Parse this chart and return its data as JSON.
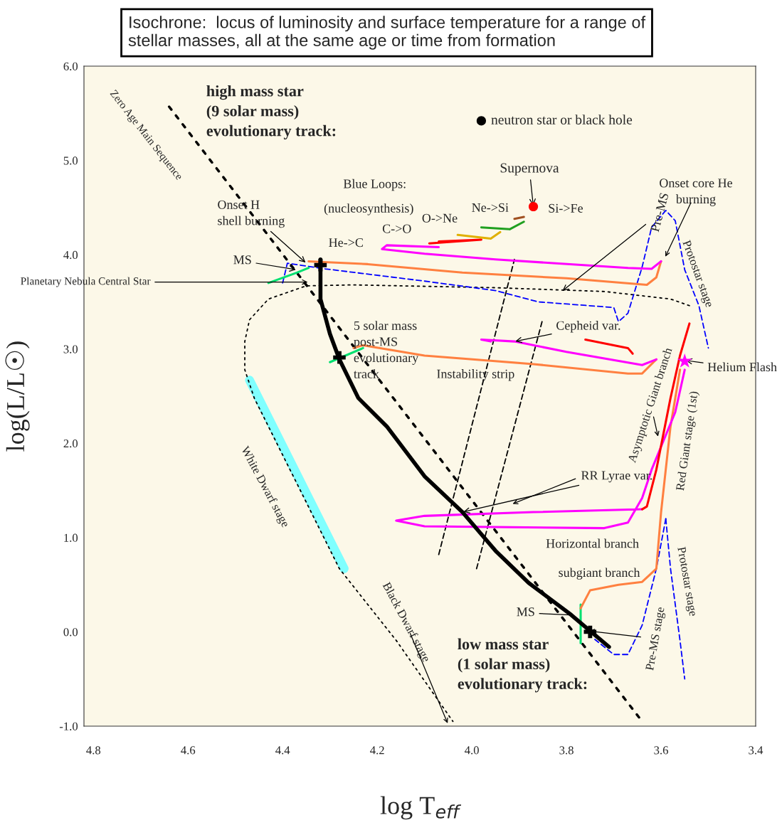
{
  "chart_data": {
    "type": "line",
    "title": "Isochrone:  locus of luminosity and surface temperature for a range of\nstellar masses, all at the same age or time from formation",
    "xlabel": "log T$_{eff}$",
    "ylabel": "log(L/L☉)",
    "xlim": [
      4.82,
      3.4
    ],
    "ylim": [
      -1.0,
      6.0
    ],
    "xticks": [
      {
        "value": 4.8,
        "label": "4.8"
      },
      {
        "value": 4.6,
        "label": "4.6"
      },
      {
        "value": 4.4,
        "label": "4.4"
      },
      {
        "value": 4.2,
        "label": "4.2"
      },
      {
        "value": 4.0,
        "label": "4.0"
      },
      {
        "value": 3.8,
        "label": "3.8"
      },
      {
        "value": 3.6,
        "label": "3.6"
      },
      {
        "value": 3.4,
        "label": "3.4"
      }
    ],
    "yticks": [
      {
        "value": -1.0,
        "label": "-1.0"
      },
      {
        "value": 0.0,
        "label": "0.0"
      },
      {
        "value": 1.0,
        "label": "1.0"
      },
      {
        "value": 2.0,
        "label": "2.0"
      },
      {
        "value": 3.0,
        "label": "3.0"
      },
      {
        "value": 4.0,
        "label": "4.0"
      },
      {
        "value": 5.0,
        "label": "5.0"
      },
      {
        "value": 6.0,
        "label": "6.0"
      }
    ],
    "grid": false,
    "series": [
      {
        "type": "line",
        "color": "#000000",
        "line_style": "dotted",
        "x": [
          4.64,
          3.64
        ],
        "values": [
          5.57,
          -0.95
        ]
      },
      {
        "type": "line",
        "color": "#80ffff",
        "line_style": "solid",
        "x": [
          4.47,
          4.27
        ],
        "values": [
          2.67,
          0.67
        ]
      },
      {
        "type": "line",
        "color": "#000000",
        "line_style": "dotted",
        "x": [
          3.54,
          3.58,
          3.72,
          3.95,
          4.25,
          4.35,
          4.43,
          4.47,
          4.48,
          4.48,
          4.46,
          4.28,
          4.16,
          4.04
        ],
        "values": [
          3.46,
          3.53,
          3.61,
          3.65,
          3.68,
          3.67,
          3.53,
          3.31,
          3.08,
          2.78,
          2.48,
          0.67,
          -0.09,
          -0.95
        ]
      },
      {
        "type": "line",
        "color": "#000000",
        "line_style": "dashed",
        "x": [
          4.07,
          3.91
        ],
        "values": [
          0.82,
          3.95
        ]
      },
      {
        "type": "line",
        "color": "#000000",
        "line_style": "dashed",
        "x": [
          3.99,
          3.85
        ],
        "values": [
          0.67,
          3.32
        ]
      },
      {
        "type": "line",
        "color": "#0000ff",
        "line_style": "dashed",
        "x": [
          4.4,
          4.39,
          4.31,
          4.1,
          3.95,
          3.86,
          3.7,
          3.69,
          3.67,
          3.64,
          3.62,
          3.59,
          3.57,
          3.55,
          3.52,
          3.5
        ],
        "values": [
          3.7,
          3.91,
          3.85,
          3.72,
          3.62,
          3.5,
          3.44,
          3.29,
          3.38,
          3.87,
          4.29,
          4.47,
          4.36,
          3.84,
          3.46,
          3.01
        ]
      },
      {
        "type": "line",
        "color": "#0000ff",
        "line_style": "dashed",
        "x": [
          3.59,
          3.61,
          3.64,
          3.67,
          3.7,
          3.74
        ],
        "values": [
          1.2,
          0.67,
          0.07,
          -0.24,
          -0.24,
          -0.08
        ]
      },
      {
        "type": "line",
        "color": "#0000ff",
        "line_style": "dashed",
        "x": [
          3.59,
          3.58,
          3.56,
          3.55
        ],
        "values": [
          1.2,
          0.67,
          -0.09,
          -0.5
        ]
      },
      {
        "type": "line",
        "color": "#ff8040",
        "line_style": "solid",
        "x": [
          4.345,
          4.22,
          4.02,
          3.8,
          3.63,
          3.61,
          3.6
        ],
        "values": [
          3.93,
          3.9,
          3.81,
          3.75,
          3.68,
          3.76,
          3.93
        ]
      },
      {
        "type": "line",
        "color": "#ff00ff",
        "line_style": "solid",
        "x": [
          3.6,
          3.62,
          3.67,
          3.95,
          4.1,
          4.19,
          4.18,
          4.07
        ],
        "values": [
          3.93,
          3.85,
          3.86,
          3.95,
          4.01,
          4.06,
          4.1,
          4.08
        ]
      },
      {
        "type": "line",
        "color": "#ff0000",
        "line_style": "solid",
        "x": [
          4.09,
          3.98,
          4.07
        ],
        "values": [
          4.12,
          4.16,
          4.14
        ]
      },
      {
        "type": "line",
        "color": "#e0b000",
        "line_style": "solid",
        "x": [
          4.03,
          3.96,
          3.94
        ],
        "values": [
          4.21,
          4.17,
          4.24
        ]
      },
      {
        "type": "line",
        "color": "#20a020",
        "line_style": "solid",
        "x": [
          3.98,
          3.92,
          3.89
        ],
        "values": [
          4.29,
          4.27,
          4.35
        ]
      },
      {
        "type": "line",
        "color": "#a05020",
        "line_style": "solid",
        "x": [
          3.91,
          3.89
        ],
        "values": [
          4.38,
          4.4
        ]
      },
      {
        "type": "line",
        "color": "#00e070",
        "line_style": "solid",
        "x": [
          4.43,
          4.37,
          4.345
        ],
        "values": [
          3.7,
          3.81,
          3.86
        ]
      },
      {
        "type": "line",
        "color": "#00e070",
        "line_style": "solid",
        "x": [
          4.3,
          4.23
        ],
        "values": [
          2.86,
          3.01
        ]
      },
      {
        "type": "line",
        "color": "#ff8040",
        "line_style": "solid",
        "x": [
          4.25,
          4.23,
          4.1,
          3.87,
          3.67,
          3.64,
          3.61
        ],
        "values": [
          3.01,
          3.04,
          2.93,
          2.84,
          2.74,
          2.74,
          2.89
        ]
      },
      {
        "type": "line",
        "color": "#ff00ff",
        "line_style": "solid",
        "x": [
          3.61,
          3.64,
          3.8,
          3.91,
          3.98,
          3.96
        ],
        "values": [
          2.89,
          2.83,
          2.97,
          3.08,
          3.1,
          3.08
        ]
      },
      {
        "type": "line",
        "color": "#ff0000",
        "line_style": "solid",
        "x": [
          3.76,
          3.67,
          3.66
        ],
        "values": [
          3.1,
          3.01,
          2.95
        ]
      },
      {
        "type": "line",
        "color": "#00e070",
        "line_style": "solid",
        "x": [
          3.77,
          3.77
        ],
        "values": [
          0.29,
          -0.12
        ]
      },
      {
        "type": "line",
        "color": "#ff8040",
        "line_style": "solid",
        "x": [
          3.77,
          3.75,
          3.69,
          3.64,
          3.61,
          3.6,
          3.58,
          3.56
        ],
        "values": [
          0.25,
          0.44,
          0.5,
          0.53,
          0.67,
          1.27,
          2.18,
          2.78
        ]
      },
      {
        "type": "line",
        "color": "#ff00ff",
        "line_style": "solid",
        "x": [
          3.55,
          3.57,
          3.62,
          3.64,
          3.67,
          3.72,
          4.1,
          4.16,
          4.1,
          3.87,
          3.64
        ],
        "values": [
          2.78,
          2.33,
          1.72,
          1.42,
          1.16,
          1.1,
          1.12,
          1.18,
          1.23,
          1.27,
          1.3
        ]
      },
      {
        "type": "line",
        "color": "#ff0000",
        "line_style": "solid",
        "x": [
          3.64,
          3.63,
          3.61,
          3.58,
          3.56,
          3.54
        ],
        "values": [
          1.3,
          1.33,
          1.72,
          2.48,
          2.93,
          3.27
        ]
      },
      {
        "type": "line",
        "color": "#000000",
        "line_style": "solid",
        "x": [
          4.32,
          4.32,
          4.3,
          4.28,
          4.24,
          4.18,
          4.1,
          4.02,
          3.95,
          3.88,
          3.79,
          3.71
        ],
        "values": [
          3.95,
          3.53,
          3.16,
          2.89,
          2.48,
          2.18,
          1.65,
          1.27,
          0.86,
          0.52,
          0.18,
          -0.16
        ]
      },
      {
        "type": "scatter",
        "color": "#000000",
        "marker": "cross",
        "x": [
          4.32,
          4.28,
          3.75
        ],
        "values": [
          3.89,
          2.91,
          0.0
        ]
      },
      {
        "type": "scatter",
        "color": "#ff0000",
        "marker": "circle",
        "x": [
          3.87
        ],
        "values": [
          4.51
        ]
      },
      {
        "type": "scatter",
        "color": "#000000",
        "marker": "circle",
        "x": [
          3.98
        ],
        "values": [
          5.42
        ]
      },
      {
        "type": "scatter",
        "color": "#ff00ff",
        "marker": "star",
        "x": [
          3.55
        ],
        "values": [
          2.87
        ]
      }
    ],
    "annotations": [
      "high mass star\n(9 solar mass)\nevolutionary track:",
      "Zero Age Main Sequence",
      "neutron star or black hole",
      {
        "text": "Supernova",
        "x": 3.87,
        "y": 4.51
      },
      "Si->Fe",
      "Ne->Si",
      "O->Ne",
      "C->O",
      "He->C",
      "Blue Loops:",
      "(nucleosynthesis)",
      {
        "text": "Onset H\nshell burning",
        "x": 4.35,
        "y": 3.91
      },
      {
        "text": "MS",
        "x": 4.37,
        "y": 3.84
      },
      {
        "text": "Planetary Nebula Central Star",
        "x": 4.345,
        "y": 3.71
      },
      "Onset core He\nburning",
      {
        "text": "Pre-MS",
        "x": 3.81,
        "y": 3.61
      },
      "Protostar stage",
      {
        "text": "5 solar mass\npost-MS\nevolutionary\ntrack",
        "x": 4.25,
        "y": 2.98
      },
      {
        "text": "Cepheid var.",
        "x": 3.91,
        "y": 3.08
      },
      "Instability strip",
      "Asymptotic Giant branch",
      "Red Giant stage (1st)",
      {
        "text": "Helium Flash",
        "x": 3.55,
        "y": 2.88
      },
      "White Dwarf stage",
      {
        "text": "RR Lyrae var.",
        "x": 4.02,
        "y": 1.27
      },
      "Horizontal branch",
      "subgiant branch",
      {
        "text": "MS",
        "x": 3.79,
        "y": 0.18
      },
      "low mass star\n(1 solar mass)\nevolutionary track:",
      "Black Dwarf stage",
      {
        "text": "Pre-MS stage",
        "x": 3.755,
        "y": 0.01
      },
      "Protostar stage"
    ]
  }
}
